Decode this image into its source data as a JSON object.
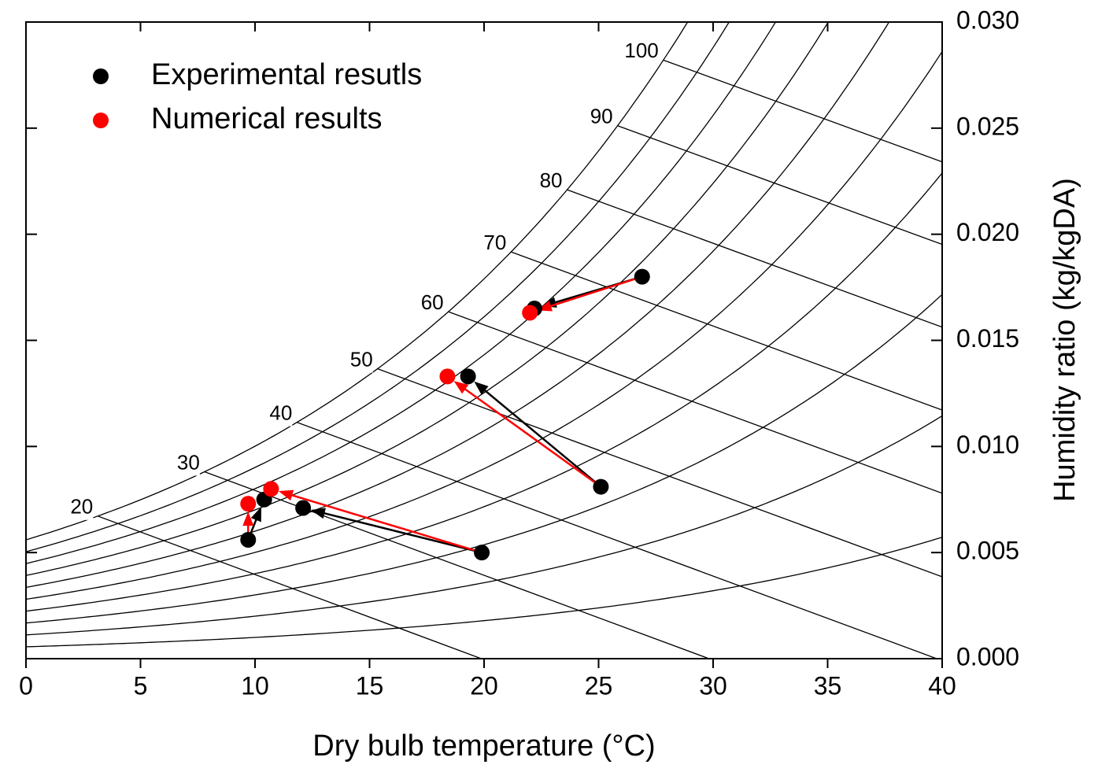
{
  "chart_data": {
    "type": "scatter",
    "xlabel": "Dry bulb temperature (°C)",
    "ylabel": "Humidity ratio (kg/kgDA)",
    "xlim": [
      0,
      40
    ],
    "xticks": [
      0,
      5,
      10,
      15,
      20,
      25,
      30,
      35,
      40
    ],
    "ylim": [
      0,
      0.03
    ],
    "yticks": [
      {
        "value": 0,
        "label": "0.000"
      },
      {
        "value": 0.005,
        "label": "0.005"
      },
      {
        "value": 0.01,
        "label": "0.010"
      },
      {
        "value": 0.015,
        "label": "0.015"
      },
      {
        "value": 0.02,
        "label": "0.020"
      },
      {
        "value": 0.025,
        "label": "0.025"
      },
      {
        "value": 0.03,
        "label": "0.030"
      }
    ],
    "y_axis_side": "right",
    "legend": "upper left",
    "rh_levels": [
      10,
      20,
      30,
      40,
      50,
      60,
      70,
      80,
      90,
      100
    ],
    "enthalpy_lines": [
      20,
      30,
      40,
      50,
      60,
      70,
      80,
      90,
      100
    ],
    "series": [
      {
        "name": "Experimental resutls",
        "color": "#000000",
        "x": [
          26.9,
          22.2,
          25.1,
          19.3,
          19.9,
          12.1,
          9.7,
          10.4
        ],
        "y": [
          0.018,
          0.0165,
          0.0081,
          0.0133,
          0.005,
          0.0071,
          0.0056,
          0.0075
        ]
      },
      {
        "name": "Numerical results",
        "color": "#ff0000",
        "x": [
          22.0,
          18.4,
          10.7,
          9.7
        ],
        "y": [
          0.0163,
          0.0133,
          0.008,
          0.0073
        ]
      }
    ]
  }
}
